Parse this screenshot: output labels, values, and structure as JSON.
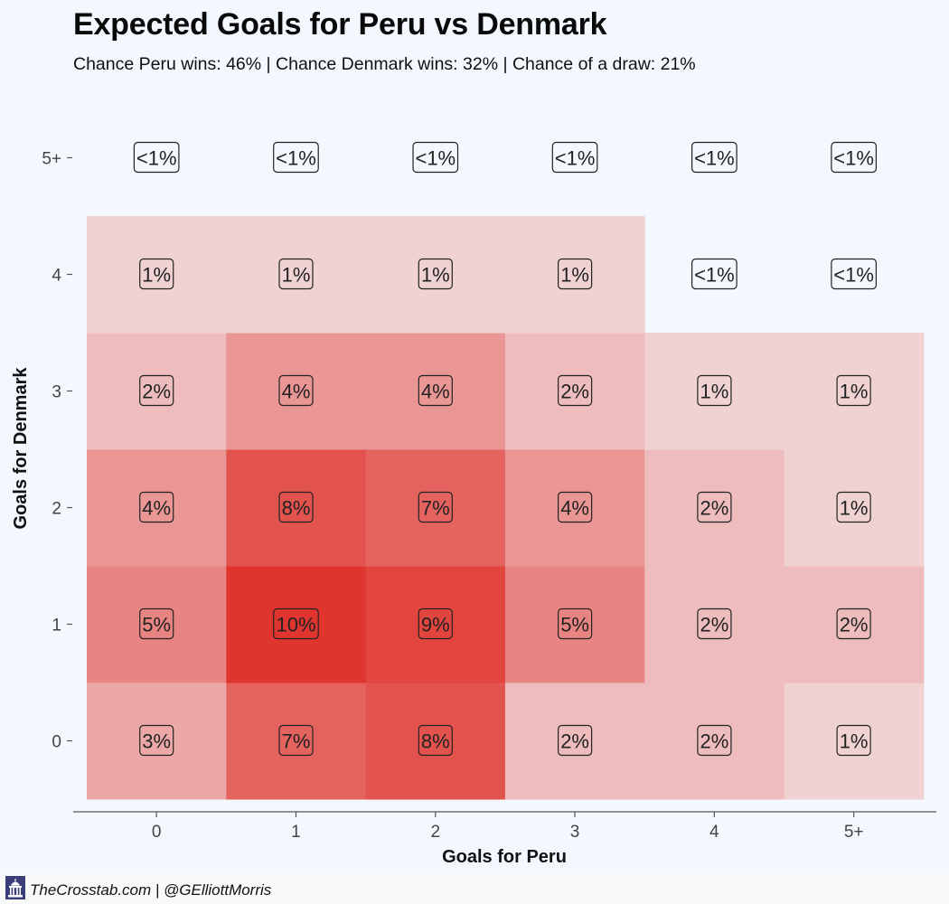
{
  "title": "Expected Goals for Peru vs Denmark",
  "subtitle": "Chance Peru wins: 46% | Chance Denmark wins: 32% | Chance of a draw: 21%",
  "footer": {
    "credit": "TheCrosstab.com | @GElliottMorris",
    "logo_icon": "capitol-building-icon"
  },
  "colors": {
    "background": "#f2f8fe",
    "low": "#f3eff2",
    "high": "#e0352e"
  },
  "chart_data": {
    "type": "heatmap",
    "title": "Expected Goals for Peru vs Denmark",
    "xlabel": "Goals for Peru",
    "ylabel": "Goals for Denmark",
    "x_categories": [
      "0",
      "1",
      "2",
      "3",
      "4",
      "5+"
    ],
    "y_categories": [
      "0",
      "1",
      "2",
      "3",
      "4",
      "5+"
    ],
    "labels": [
      [
        "3%",
        "7%",
        "8%",
        "2%",
        "2%",
        "1%"
      ],
      [
        "5%",
        "10%",
        "9%",
        "5%",
        "2%",
        "2%"
      ],
      [
        "4%",
        "8%",
        "7%",
        "4%",
        "2%",
        "1%"
      ],
      [
        "2%",
        "4%",
        "4%",
        "2%",
        "1%",
        "1%"
      ],
      [
        "1%",
        "1%",
        "1%",
        "1%",
        "<1%",
        "<1%"
      ],
      [
        "<1%",
        "<1%",
        "<1%",
        "<1%",
        "<1%",
        "<1%"
      ]
    ],
    "values": [
      [
        3,
        7,
        8,
        2,
        2,
        1
      ],
      [
        5,
        10,
        9,
        5,
        2,
        2
      ],
      [
        4,
        8,
        7,
        4,
        2,
        1
      ],
      [
        2,
        4,
        4,
        2,
        1,
        1
      ],
      [
        1,
        1,
        1,
        1,
        0,
        0
      ],
      [
        0,
        0,
        0,
        0,
        0,
        0
      ]
    ],
    "grid": false,
    "legend": "none"
  }
}
